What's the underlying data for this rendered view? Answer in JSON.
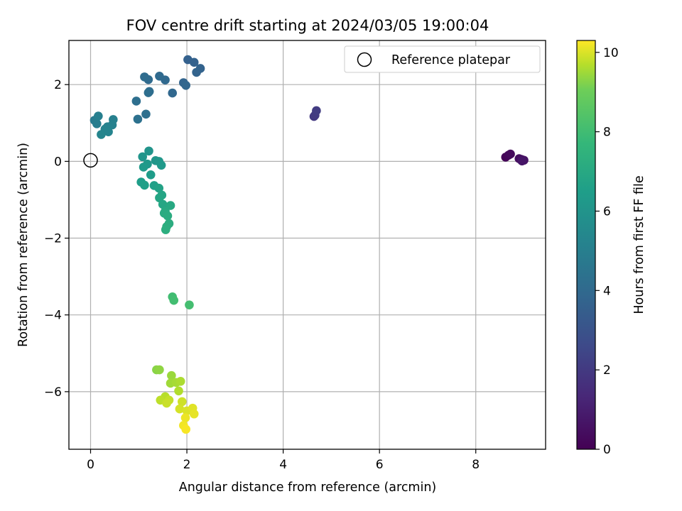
{
  "chart_data": {
    "type": "scatter",
    "title": "FOV centre drift starting at 2024/03/05 19:00:04",
    "xlabel": "Angular distance from reference (arcmin)",
    "ylabel": "Rotation from reference (arcmin)",
    "xlim": [
      -0.45,
      9.45
    ],
    "ylim": [
      -7.5,
      3.15
    ],
    "xticks": [
      0,
      2,
      4,
      6,
      8
    ],
    "yticks": [
      -6,
      -4,
      -2,
      0,
      2
    ],
    "grid": true,
    "legend": {
      "position": "top-right",
      "entries": [
        "Reference platepar"
      ]
    },
    "reference_point": {
      "x": 0,
      "y": 0,
      "label": "Reference platepar"
    },
    "colorbar": {
      "label": "Hours from first FF file",
      "range": [
        0,
        10.3
      ],
      "ticks": [
        0,
        2,
        4,
        6,
        8,
        10
      ],
      "colormap": "viridis"
    },
    "points": [
      {
        "x": 8.62,
        "y": 0.11,
        "c": 0.1
      },
      {
        "x": 8.68,
        "y": 0.16,
        "c": 0.2
      },
      {
        "x": 8.72,
        "y": 0.19,
        "c": 0.3
      },
      {
        "x": 8.9,
        "y": 0.07,
        "c": 0.4
      },
      {
        "x": 8.95,
        "y": 0.05,
        "c": 0.5
      },
      {
        "x": 9.0,
        "y": 0.03,
        "c": 0.6
      },
      {
        "x": 8.96,
        "y": 0.01,
        "c": 0.7
      },
      {
        "x": 4.64,
        "y": 1.17,
        "c": 1.9
      },
      {
        "x": 4.66,
        "y": 1.2,
        "c": 2.0
      },
      {
        "x": 4.69,
        "y": 1.32,
        "c": 2.1
      },
      {
        "x": 2.02,
        "y": 2.65,
        "c": 3.6
      },
      {
        "x": 2.15,
        "y": 2.58,
        "c": 3.65
      },
      {
        "x": 2.28,
        "y": 2.42,
        "c": 3.7
      },
      {
        "x": 2.2,
        "y": 2.32,
        "c": 3.75
      },
      {
        "x": 1.93,
        "y": 2.05,
        "c": 3.8
      },
      {
        "x": 1.98,
        "y": 1.98,
        "c": 3.85
      },
      {
        "x": 1.7,
        "y": 1.78,
        "c": 3.9
      },
      {
        "x": 1.55,
        "y": 2.12,
        "c": 3.95
      },
      {
        "x": 1.43,
        "y": 2.22,
        "c": 4.0
      },
      {
        "x": 1.2,
        "y": 2.13,
        "c": 4.05
      },
      {
        "x": 1.12,
        "y": 2.2,
        "c": 4.1
      },
      {
        "x": 1.22,
        "y": 1.82,
        "c": 4.15
      },
      {
        "x": 1.2,
        "y": 1.79,
        "c": 4.2
      },
      {
        "x": 0.95,
        "y": 1.57,
        "c": 4.25
      },
      {
        "x": 1.15,
        "y": 1.23,
        "c": 4.3
      },
      {
        "x": 0.98,
        "y": 1.1,
        "c": 4.35
      },
      {
        "x": 0.08,
        "y": 1.07,
        "c": 4.8
      },
      {
        "x": 0.13,
        "y": 0.98,
        "c": 4.9
      },
      {
        "x": 0.16,
        "y": 1.18,
        "c": 5.0
      },
      {
        "x": 0.47,
        "y": 1.09,
        "c": 5.05
      },
      {
        "x": 0.45,
        "y": 0.95,
        "c": 5.1
      },
      {
        "x": 0.35,
        "y": 0.9,
        "c": 5.15
      },
      {
        "x": 0.3,
        "y": 0.84,
        "c": 5.2
      },
      {
        "x": 0.37,
        "y": 0.77,
        "c": 5.25
      },
      {
        "x": 0.22,
        "y": 0.7,
        "c": 5.3
      },
      {
        "x": 1.21,
        "y": 0.27,
        "c": 6.0
      },
      {
        "x": 1.08,
        "y": 0.12,
        "c": 6.05
      },
      {
        "x": 1.35,
        "y": 0.02,
        "c": 6.1
      },
      {
        "x": 1.42,
        "y": 0.0,
        "c": 6.15
      },
      {
        "x": 1.18,
        "y": -0.07,
        "c": 6.2
      },
      {
        "x": 1.47,
        "y": -0.1,
        "c": 6.25
      },
      {
        "x": 1.1,
        "y": -0.15,
        "c": 6.3
      },
      {
        "x": 1.25,
        "y": -0.35,
        "c": 6.4
      },
      {
        "x": 1.05,
        "y": -0.54,
        "c": 6.5
      },
      {
        "x": 1.12,
        "y": -0.62,
        "c": 6.55
      },
      {
        "x": 1.32,
        "y": -0.63,
        "c": 6.6
      },
      {
        "x": 1.42,
        "y": -0.7,
        "c": 6.7
      },
      {
        "x": 1.48,
        "y": -0.88,
        "c": 6.8
      },
      {
        "x": 1.43,
        "y": -0.95,
        "c": 6.85
      },
      {
        "x": 1.5,
        "y": -1.12,
        "c": 6.9
      },
      {
        "x": 1.66,
        "y": -1.15,
        "c": 7.0
      },
      {
        "x": 1.55,
        "y": -1.3,
        "c": 7.05
      },
      {
        "x": 1.53,
        "y": -1.35,
        "c": 7.1
      },
      {
        "x": 1.6,
        "y": -1.42,
        "c": 7.15
      },
      {
        "x": 1.63,
        "y": -1.62,
        "c": 7.2
      },
      {
        "x": 1.58,
        "y": -1.7,
        "c": 7.25
      },
      {
        "x": 1.56,
        "y": -1.78,
        "c": 7.3
      },
      {
        "x": 1.7,
        "y": -3.53,
        "c": 8.0
      },
      {
        "x": 1.73,
        "y": -3.62,
        "c": 8.05
      },
      {
        "x": 2.05,
        "y": -3.74,
        "c": 8.1
      },
      {
        "x": 1.37,
        "y": -5.43,
        "c": 9.3
      },
      {
        "x": 1.43,
        "y": -5.43,
        "c": 9.35
      },
      {
        "x": 1.68,
        "y": -5.58,
        "c": 9.45
      },
      {
        "x": 1.66,
        "y": -5.78,
        "c": 9.5
      },
      {
        "x": 1.78,
        "y": -5.76,
        "c": 9.55
      },
      {
        "x": 1.87,
        "y": -5.73,
        "c": 9.6
      },
      {
        "x": 1.83,
        "y": -5.98,
        "c": 9.65
      },
      {
        "x": 1.55,
        "y": -6.13,
        "c": 9.7
      },
      {
        "x": 1.45,
        "y": -6.22,
        "c": 9.75
      },
      {
        "x": 1.63,
        "y": -6.22,
        "c": 9.8
      },
      {
        "x": 1.58,
        "y": -6.3,
        "c": 9.85
      },
      {
        "x": 1.9,
        "y": -6.26,
        "c": 9.9
      },
      {
        "x": 1.85,
        "y": -6.45,
        "c": 9.95
      },
      {
        "x": 2.0,
        "y": -6.5,
        "c": 10.0
      },
      {
        "x": 2.12,
        "y": -6.43,
        "c": 10.05
      },
      {
        "x": 2.15,
        "y": -6.58,
        "c": 10.1
      },
      {
        "x": 1.97,
        "y": -6.68,
        "c": 10.15
      },
      {
        "x": 1.93,
        "y": -6.88,
        "c": 10.2
      },
      {
        "x": 1.98,
        "y": -6.98,
        "c": 10.25
      }
    ]
  }
}
